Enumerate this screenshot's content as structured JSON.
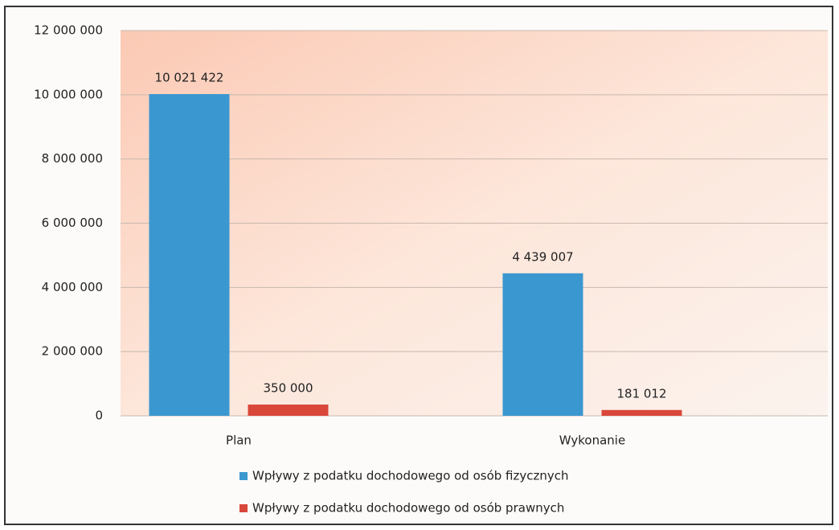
{
  "chart_data": {
    "type": "bar",
    "categories": [
      "Plan",
      "Wykonanie"
    ],
    "series": [
      {
        "name": "Wpływy z podatku dochodowego od osób fizycznych",
        "color": "#3b97cf",
        "values": [
          10021422,
          4439007
        ],
        "value_labels": [
          "10 021 422",
          "4 439 007"
        ]
      },
      {
        "name": "Wpływy z podatku dochodowego od osób prawnych",
        "color": "#d9473a",
        "values": [
          350000,
          181012
        ],
        "value_labels": [
          "350 000",
          "181 012"
        ]
      }
    ],
    "ylim": [
      0,
      12000000
    ],
    "yticks": [
      0,
      {
        "value": 2000000,
        "label": "2 000 000"
      },
      {
        "value": 4000000,
        "label": "4 000 000"
      },
      {
        "value": 6000000,
        "label": "6 000 000"
      },
      {
        "value": 8000000,
        "label": "8 000 000"
      },
      {
        "value": 10000000,
        "label": "10 000 000"
      },
      {
        "value": 12000000,
        "label": "12 000 000"
      }
    ],
    "grid": true,
    "legend": "bottom"
  }
}
